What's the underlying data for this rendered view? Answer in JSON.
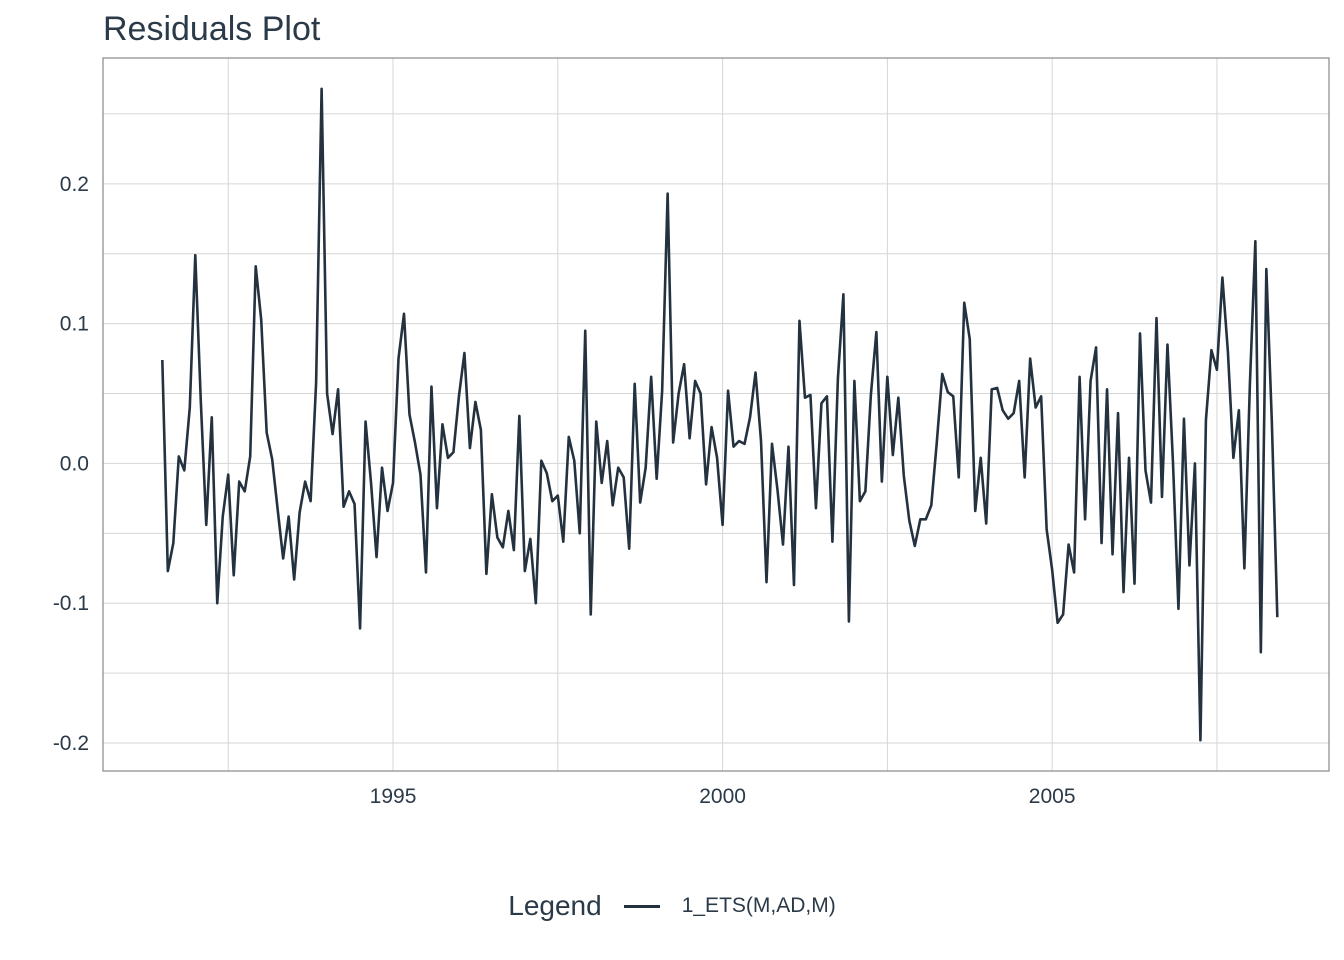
{
  "colors": {
    "line": "#24323f",
    "grid": "#d6d6d6",
    "panel_border": "#888888",
    "text": "#2b3a48"
  },
  "chart_data": {
    "type": "line",
    "title": "Residuals Plot",
    "xlabel": "",
    "ylabel": "",
    "xlim": [
      1990.6,
      2009.2
    ],
    "ylim": [
      -0.22,
      0.29
    ],
    "xticks": [
      1995,
      2000,
      2005
    ],
    "xtick_labels": [
      "1995",
      "2000",
      "2005"
    ],
    "yticks": [
      -0.2,
      -0.1,
      0.0,
      0.1,
      0.2
    ],
    "ytick_labels": [
      "-0.2",
      "-0.1",
      "0.0",
      "0.1",
      "0.2"
    ],
    "grid": true,
    "legend": {
      "title": "Legend",
      "position": "bottom",
      "entries": [
        "1_ETS(M,AD,M)"
      ]
    },
    "series": [
      {
        "name": "1_ETS(M,AD,M)",
        "start": 1991.5,
        "step": 0.08333,
        "values": [
          0.074,
          -0.077,
          -0.057,
          0.005,
          -0.005,
          0.04,
          0.149,
          0.045,
          -0.044,
          0.033,
          -0.1,
          -0.038,
          -0.008,
          -0.08,
          -0.013,
          -0.02,
          0.005,
          0.141,
          0.103,
          0.022,
          0.003,
          -0.033,
          -0.068,
          -0.038,
          -0.083,
          -0.035,
          -0.013,
          -0.027,
          0.058,
          0.268,
          0.05,
          0.021,
          0.053,
          -0.031,
          -0.02,
          -0.029,
          -0.118,
          0.03,
          -0.014,
          -0.067,
          -0.003,
          -0.034,
          -0.014,
          0.075,
          0.107,
          0.035,
          0.015,
          -0.008,
          -0.078,
          0.055,
          -0.032,
          0.028,
          0.004,
          0.008,
          0.048,
          0.079,
          0.011,
          0.044,
          0.024,
          -0.079,
          -0.022,
          -0.053,
          -0.06,
          -0.034,
          -0.062,
          0.034,
          -0.077,
          -0.054,
          -0.1,
          0.002,
          -0.007,
          -0.027,
          -0.023,
          -0.056,
          0.019,
          0.002,
          -0.05,
          0.095,
          -0.108,
          0.03,
          -0.014,
          0.016,
          -0.03,
          -0.003,
          -0.01,
          -0.061,
          0.057,
          -0.028,
          -0.003,
          0.062,
          -0.011,
          0.052,
          0.193,
          0.015,
          0.05,
          0.071,
          0.018,
          0.059,
          0.05,
          -0.015,
          0.026,
          0.004,
          -0.044,
          0.052,
          0.012,
          0.016,
          0.014,
          0.033,
          0.065,
          0.016,
          -0.085,
          0.014,
          -0.019,
          -0.058,
          0.012,
          -0.087,
          0.102,
          0.047,
          0.049,
          -0.032,
          0.043,
          0.048,
          -0.056,
          0.061,
          0.121,
          -0.113,
          0.059,
          -0.027,
          -0.02,
          0.049,
          0.094,
          -0.013,
          0.062,
          0.006,
          0.047,
          -0.009,
          -0.041,
          -0.059,
          -0.04,
          -0.04,
          -0.03,
          0.015,
          0.064,
          0.051,
          0.048,
          -0.01,
          0.115,
          0.089,
          -0.034,
          0.004,
          -0.043,
          0.053,
          0.054,
          0.038,
          0.032,
          0.036,
          0.059,
          -0.01,
          0.075,
          0.04,
          0.048,
          -0.047,
          -0.076,
          -0.114,
          -0.108,
          -0.058,
          -0.078,
          0.062,
          -0.04,
          0.059,
          0.083,
          -0.057,
          0.053,
          -0.065,
          0.036,
          -0.092,
          0.004,
          -0.086,
          0.093,
          -0.005,
          -0.028,
          0.104,
          -0.024,
          0.085,
          0.001,
          -0.104,
          0.032,
          -0.073,
          0.0,
          -0.198,
          0.031,
          0.081,
          0.067,
          0.133,
          0.08,
          0.004,
          0.038,
          -0.075,
          0.056,
          0.159,
          -0.135,
          0.139,
          0.03,
          -0.11
        ]
      }
    ]
  }
}
